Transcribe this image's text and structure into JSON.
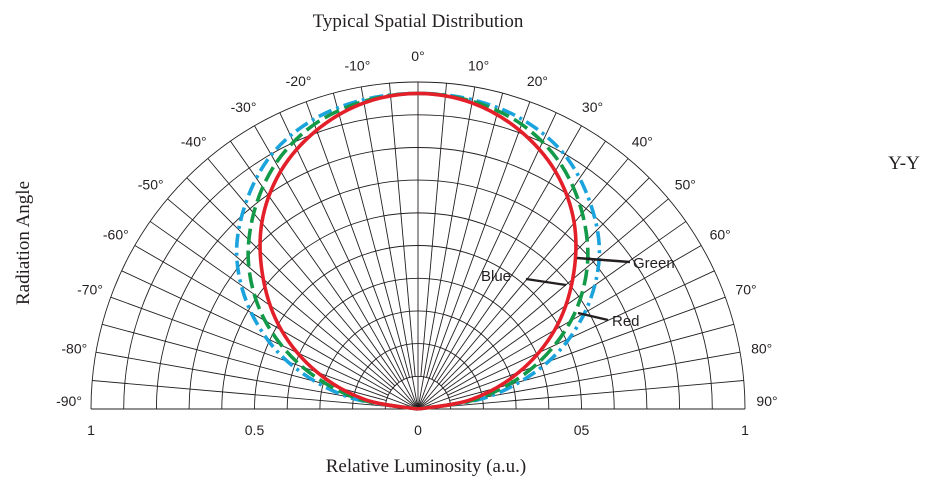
{
  "chart_data": {
    "type": "polar-line",
    "title": "Typical Spatial Distribution",
    "xlabel": "Relative Luminosity (a.u.)",
    "ylabel": "Radiation Angle",
    "side_label": "Y-Y",
    "angle_ticks": [
      -90,
      -80,
      -70,
      -60,
      -50,
      -40,
      -30,
      -20,
      -10,
      0,
      10,
      20,
      30,
      40,
      50,
      60,
      70,
      80,
      90
    ],
    "angle_tick_labels": [
      "-90°",
      "-80°",
      "-70°",
      "-60°",
      "-50°",
      "-40°",
      "-30°",
      "-20°",
      "-10°",
      "0°",
      "10°",
      "20°",
      "30°",
      "40°",
      "50°",
      "60°",
      "70°",
      "80°",
      "90°"
    ],
    "radial_ticks": [
      1,
      0.5,
      0,
      0.5,
      1
    ],
    "radial_tick_labels": [
      "1",
      "0.5",
      "0",
      "05",
      "1"
    ],
    "radial_range": [
      0,
      1
    ],
    "grid": true,
    "series": [
      {
        "name": "Red",
        "color": "#e3202a",
        "dash": "solid",
        "angles": [
          -90,
          -80,
          -70,
          -60,
          -50,
          -40,
          -30,
          -20,
          -10,
          0,
          10,
          20,
          30,
          40,
          50,
          60,
          70,
          80,
          90
        ],
        "values": [
          0.0,
          0.17,
          0.34,
          0.5,
          0.64,
          0.77,
          0.87,
          0.94,
          0.985,
          1.0,
          0.985,
          0.94,
          0.87,
          0.77,
          0.64,
          0.5,
          0.34,
          0.17,
          0.0
        ]
      },
      {
        "name": "Green",
        "color": "#139a48",
        "dash": "dash",
        "angles": [
          -90,
          -80,
          -70,
          -60,
          -50,
          -40,
          -30,
          -20,
          -10,
          0,
          10,
          20,
          30,
          40,
          50,
          60,
          70,
          80,
          90
        ],
        "values": [
          0.0,
          0.2,
          0.39,
          0.56,
          0.7,
          0.81,
          0.9,
          0.96,
          0.99,
          1.0,
          0.99,
          0.96,
          0.9,
          0.81,
          0.7,
          0.56,
          0.39,
          0.2,
          0.0
        ]
      },
      {
        "name": "Blue",
        "color": "#1aa3dc",
        "dash": "dashdot",
        "angles": [
          -90,
          -80,
          -70,
          -60,
          -50,
          -40,
          -30,
          -20,
          -10,
          0,
          10,
          20,
          30,
          40,
          50,
          60,
          70,
          80,
          90
        ],
        "values": [
          0.0,
          0.23,
          0.44,
          0.61,
          0.75,
          0.85,
          0.93,
          0.975,
          0.995,
          1.0,
          0.995,
          0.975,
          0.93,
          0.85,
          0.75,
          0.61,
          0.44,
          0.23,
          0.0
        ]
      }
    ],
    "annotations": [
      {
        "text": "Green",
        "series": "Green"
      },
      {
        "text": "Blue",
        "series": "Blue"
      },
      {
        "text": "Red",
        "series": "Red"
      }
    ]
  }
}
